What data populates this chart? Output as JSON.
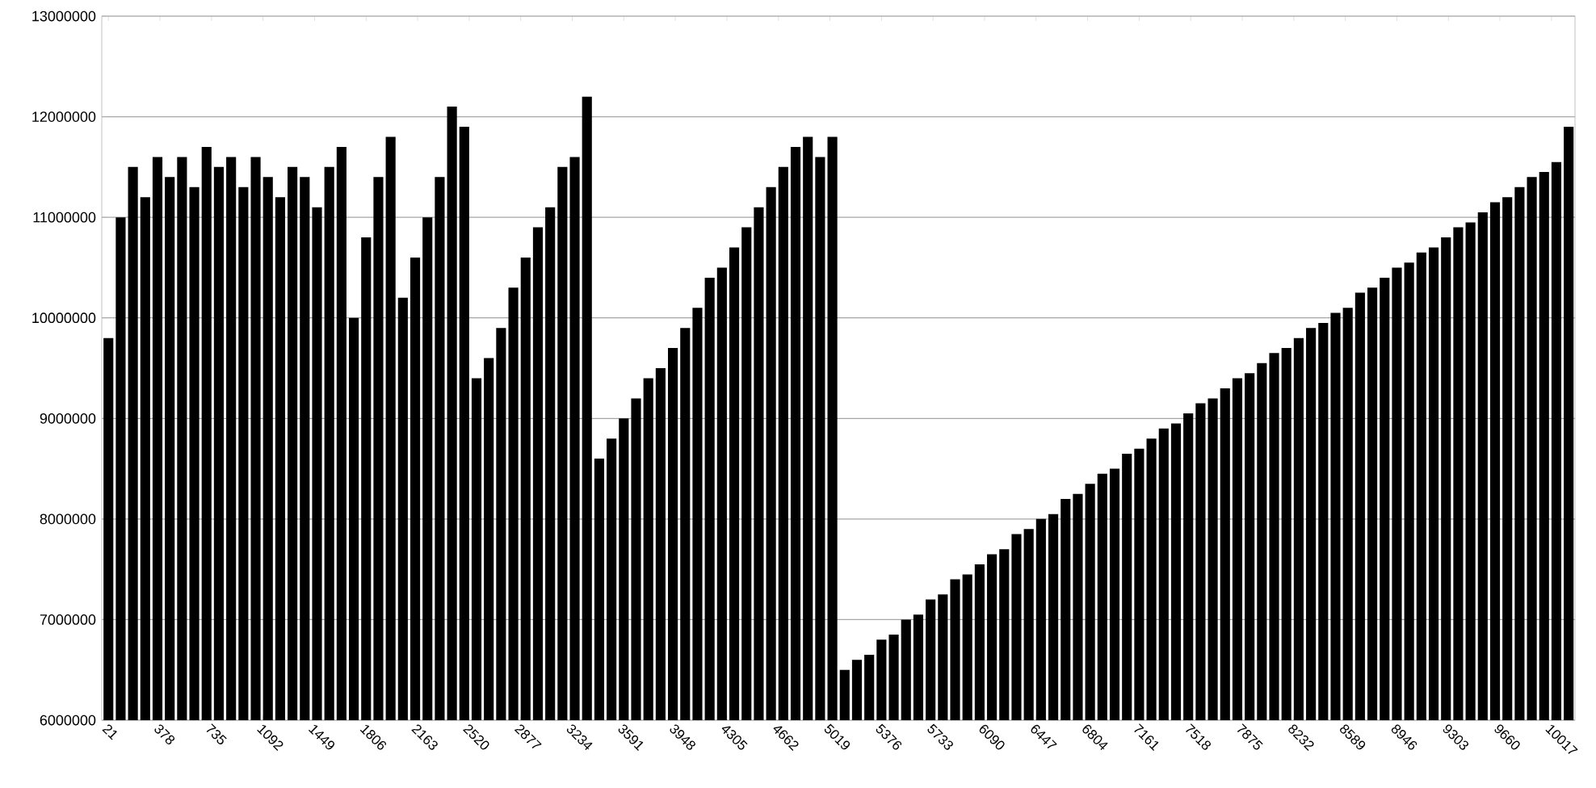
{
  "chart_data": {
    "type": "bar",
    "color": "#000000",
    "grid": "y",
    "x": [
      21,
      106,
      191,
      276,
      361,
      446,
      531,
      616,
      701,
      786,
      871,
      956,
      1041,
      1126,
      1211,
      1296,
      1381,
      1466,
      1551,
      1636,
      1721,
      1806,
      1891,
      1976,
      2061,
      2146,
      2231,
      2316,
      2401,
      2486,
      2571,
      2656,
      2741,
      2826,
      2911,
      2996,
      3081,
      3166,
      3251,
      3336,
      3421,
      3506,
      3591,
      3676,
      3761,
      3846,
      3931,
      4016,
      4101,
      4186,
      4271,
      4356,
      4441,
      4526,
      4611,
      4696,
      4781,
      4866,
      4951,
      5036,
      5121,
      5206,
      5291,
      5376,
      5461,
      5546,
      5631,
      5716,
      5801,
      5886,
      5971,
      6056,
      6141,
      6226,
      6311,
      6396,
      6481,
      6566,
      6651,
      6736,
      6821,
      6906,
      6991,
      7076,
      7161,
      7246,
      7331,
      7416,
      7501,
      7586,
      7671,
      7756,
      7841,
      7926,
      8011,
      8096,
      8181,
      8266,
      8351,
      8436,
      8521,
      8606,
      8691,
      8776,
      8861,
      8946,
      9031,
      9116,
      9201,
      9286,
      9371,
      9456,
      9541,
      9626,
      9711,
      9796,
      9881,
      9966,
      10051,
      10136
    ],
    "values": [
      9800000,
      11000000,
      11500000,
      11200000,
      11600000,
      11400000,
      11600000,
      11300000,
      11700000,
      11500000,
      11600000,
      11300000,
      11600000,
      11400000,
      11200000,
      11500000,
      11400000,
      11100000,
      11500000,
      11700000,
      10000000,
      10800000,
      11400000,
      11800000,
      10200000,
      10600000,
      11000000,
      11400000,
      12100000,
      11900000,
      9400000,
      9600000,
      9900000,
      10300000,
      10600000,
      10900000,
      11100000,
      11500000,
      11600000,
      12200000,
      8600000,
      8800000,
      9000000,
      9200000,
      9400000,
      9500000,
      9700000,
      9900000,
      10100000,
      10400000,
      10500000,
      10700000,
      10900000,
      11100000,
      11300000,
      11500000,
      11700000,
      11800000,
      11600000,
      11800000,
      6500000,
      6600000,
      6650000,
      6800000,
      6850000,
      7000000,
      7050000,
      7200000,
      7250000,
      7400000,
      7450000,
      7550000,
      7650000,
      7700000,
      7850000,
      7900000,
      8000000,
      8050000,
      8200000,
      8250000,
      8350000,
      8450000,
      8500000,
      8650000,
      8700000,
      8800000,
      8900000,
      8950000,
      9050000,
      9150000,
      9200000,
      9300000,
      9400000,
      9450000,
      9550000,
      9650000,
      9700000,
      9800000,
      9900000,
      9950000,
      10050000,
      10100000,
      10250000,
      10300000,
      10400000,
      10500000,
      10550000,
      10650000,
      10700000,
      10800000,
      10900000,
      10950000,
      11050000,
      11150000,
      11200000,
      11300000,
      11400000,
      11450000,
      11550000,
      11900000
    ],
    "xlim": [
      -25,
      10180
    ],
    "ylim": [
      6000000,
      13000000
    ],
    "yticks": [
      6000000,
      7000000,
      8000000,
      9000000,
      10000000,
      11000000,
      12000000,
      13000000
    ],
    "xticks": [
      21,
      378,
      735,
      1092,
      1449,
      1806,
      2163,
      2520,
      2877,
      3234,
      3591,
      3948,
      4305,
      4662,
      5019,
      5376,
      5733,
      6090,
      6447,
      6804,
      7161,
      7518,
      7875,
      8232,
      8589,
      8946,
      9303,
      9660,
      10017
    ]
  }
}
